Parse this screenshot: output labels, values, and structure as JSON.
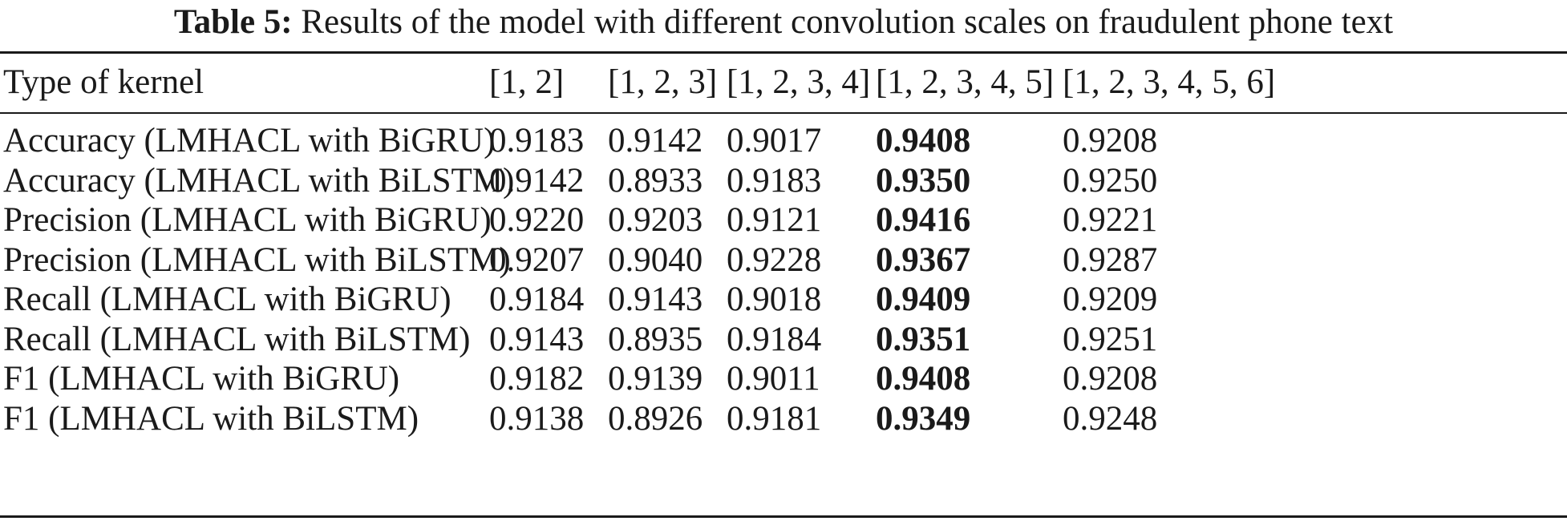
{
  "caption": {
    "label": "Table 5:",
    "text": "Results of the model with different convolution scales on fraudulent phone text"
  },
  "header": [
    "Type of kernel",
    "[1, 2]",
    "[1, 2, 3]",
    "[1, 2, 3, 4]",
    "[1, 2, 3, 4, 5]",
    "[1, 2, 3, 4, 5, 6]"
  ],
  "rows": [
    {
      "label": "Accuracy (LMHACL with BiGRU)",
      "values": [
        "0.9183",
        "0.9142",
        "0.9017",
        "0.9408",
        "0.9208"
      ]
    },
    {
      "label": "Accuracy (LMHACL with BiLSTM)",
      "values": [
        "0.9142",
        "0.8933",
        "0.9183",
        "0.9350",
        "0.9250"
      ]
    },
    {
      "label": "Precision (LMHACL with BiGRU)",
      "values": [
        "0.9220",
        "0.9203",
        "0.9121",
        "0.9416",
        "0.9221"
      ]
    },
    {
      "label": "Precision (LMHACL with BiLSTM)",
      "values": [
        "0.9207",
        "0.9040",
        "0.9228",
        "0.9367",
        "0.9287"
      ]
    },
    {
      "label": "Recall (LMHACL with BiGRU)",
      "values": [
        "0.9184",
        "0.9143",
        "0.9018",
        "0.9409",
        "0.9209"
      ]
    },
    {
      "label": "Recall (LMHACL with BiLSTM)",
      "values": [
        "0.9143",
        "0.8935",
        "0.9184",
        "0.9351",
        "0.9251"
      ]
    },
    {
      "label": "F1 (LMHACL with BiGRU)",
      "values": [
        "0.9182",
        "0.9139",
        "0.9011",
        "0.9408",
        "0.9208"
      ]
    },
    {
      "label": "F1 (LMHACL with BiLSTM)",
      "values": [
        "0.9138",
        "0.8926",
        "0.9181",
        "0.9349",
        "0.9248"
      ]
    }
  ],
  "bold_column": 3
}
